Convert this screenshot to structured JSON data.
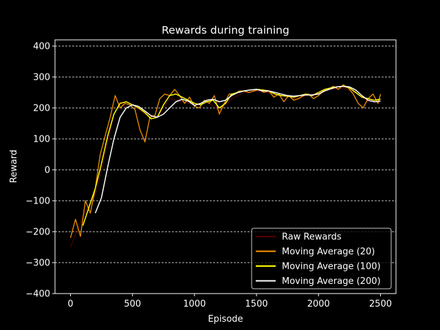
{
  "chart_data": {
    "type": "line",
    "title": "Rewards during training",
    "xlabel": "Episode",
    "ylabel": "Reward",
    "xlim": [
      -125,
      2625
    ],
    "ylim": [
      -400,
      420
    ],
    "xticks": [
      0,
      500,
      1000,
      1500,
      2000,
      2500
    ],
    "yticks": [
      -400,
      -300,
      -200,
      -100,
      0,
      100,
      200,
      300,
      400
    ],
    "grid": "y-dashed",
    "legend_position": "lower-right",
    "background": "#000000",
    "series": [
      {
        "name": "Raw Rewards",
        "color": "#5a0000",
        "x": [
          0,
          100,
          200,
          250,
          300,
          350,
          400,
          450,
          500,
          600,
          700,
          800,
          900,
          1000,
          1100,
          1200,
          1300,
          1400,
          1500,
          1600,
          1700,
          1800,
          1900,
          2000,
          2100,
          2200,
          2300,
          2400,
          2500
        ],
        "y": [
          -250,
          -150,
          -80,
          0,
          90,
          180,
          220,
          200,
          210,
          180,
          170,
          230,
          220,
          210,
          220,
          190,
          230,
          250,
          255,
          250,
          240,
          230,
          240,
          250,
          260,
          265,
          250,
          220,
          230
        ]
      },
      {
        "name": "Moving Average (20)",
        "color": "#ff9900",
        "x": [
          0,
          40,
          80,
          120,
          160,
          200,
          240,
          280,
          320,
          360,
          400,
          440,
          480,
          520,
          560,
          600,
          640,
          680,
          720,
          760,
          800,
          840,
          880,
          920,
          960,
          1000,
          1040,
          1080,
          1120,
          1160,
          1200,
          1240,
          1280,
          1320,
          1360,
          1400,
          1440,
          1480,
          1520,
          1560,
          1600,
          1640,
          1680,
          1720,
          1760,
          1800,
          1840,
          1880,
          1920,
          1960,
          2000,
          2040,
          2080,
          2120,
          2160,
          2200,
          2240,
          2280,
          2320,
          2360,
          2400,
          2440,
          2480,
          2500
        ],
        "y": [
          -220,
          -160,
          -215,
          -100,
          -140,
          -60,
          50,
          110,
          170,
          240,
          200,
          215,
          210,
          195,
          130,
          90,
          170,
          175,
          230,
          245,
          240,
          260,
          240,
          215,
          235,
          205,
          200,
          225,
          215,
          240,
          180,
          215,
          245,
          245,
          255,
          255,
          250,
          255,
          260,
          250,
          255,
          235,
          245,
          220,
          240,
          225,
          230,
          240,
          245,
          230,
          240,
          255,
          260,
          270,
          260,
          275,
          265,
          245,
          215,
          200,
          230,
          245,
          215,
          245
        ]
      },
      {
        "name": "Moving Average (100)",
        "color": "#ffff00",
        "x": [
          100,
          150,
          200,
          250,
          300,
          350,
          400,
          450,
          500,
          550,
          600,
          650,
          700,
          750,
          800,
          850,
          900,
          950,
          1000,
          1050,
          1100,
          1150,
          1200,
          1250,
          1300,
          1350,
          1400,
          1450,
          1500,
          1550,
          1600,
          1650,
          1700,
          1750,
          1800,
          1850,
          1900,
          1950,
          2000,
          2050,
          2100,
          2150,
          2200,
          2250,
          2300,
          2350,
          2400,
          2450,
          2500
        ],
        "y": [
          -180,
          -120,
          -60,
          20,
          110,
          180,
          215,
          220,
          210,
          200,
          185,
          165,
          170,
          210,
          240,
          245,
          235,
          225,
          215,
          210,
          220,
          225,
          200,
          215,
          245,
          250,
          255,
          258,
          260,
          258,
          255,
          245,
          240,
          238,
          235,
          240,
          245,
          240,
          250,
          260,
          265,
          268,
          270,
          265,
          250,
          235,
          230,
          225,
          228
        ]
      },
      {
        "name": "Moving Average (200)",
        "color": "#ffffff",
        "x": [
          200,
          250,
          300,
          350,
          400,
          450,
          500,
          550,
          600,
          650,
          700,
          750,
          800,
          850,
          900,
          950,
          1000,
          1050,
          1100,
          1150,
          1200,
          1250,
          1300,
          1350,
          1400,
          1450,
          1500,
          1550,
          1600,
          1650,
          1700,
          1750,
          1800,
          1850,
          1900,
          1950,
          2000,
          2050,
          2100,
          2150,
          2200,
          2250,
          2300,
          2350,
          2400,
          2450,
          2500
        ],
        "y": [
          -140,
          -90,
          10,
          100,
          170,
          200,
          210,
          205,
          190,
          175,
          170,
          180,
          200,
          220,
          228,
          222,
          208,
          215,
          225,
          228,
          220,
          225,
          240,
          250,
          255,
          258,
          260,
          255,
          255,
          250,
          245,
          240,
          238,
          240,
          242,
          242,
          245,
          255,
          262,
          268,
          270,
          268,
          258,
          240,
          225,
          220,
          222
        ]
      }
    ]
  }
}
